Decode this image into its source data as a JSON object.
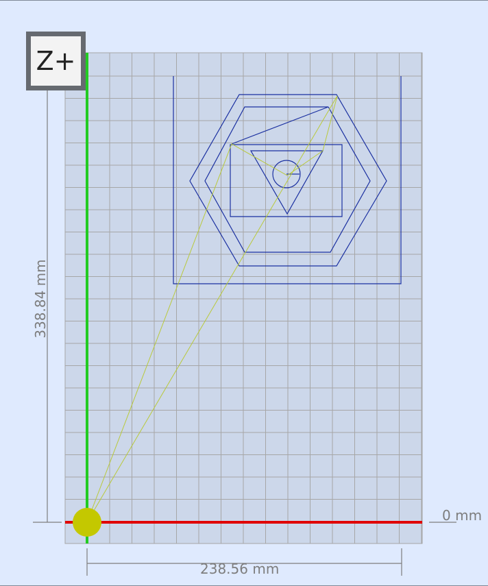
{
  "toolbar": {
    "z_plus_label": "Z+"
  },
  "dimensions": {
    "width_label": "238.56 mm",
    "height_label": "338.84 mm",
    "zero_label": "0 mm"
  },
  "colors": {
    "background": "#dfeafe",
    "bed": "#ccd7ea",
    "grid": "#a6a6a6",
    "x_axis": "#e00000",
    "y_axis": "#22cc22",
    "toolpath": "#1a2fa0",
    "travel": "#b9c93a",
    "origin_marker": "#c4c800"
  },
  "icons": {
    "origin": "origin-marker-icon"
  }
}
